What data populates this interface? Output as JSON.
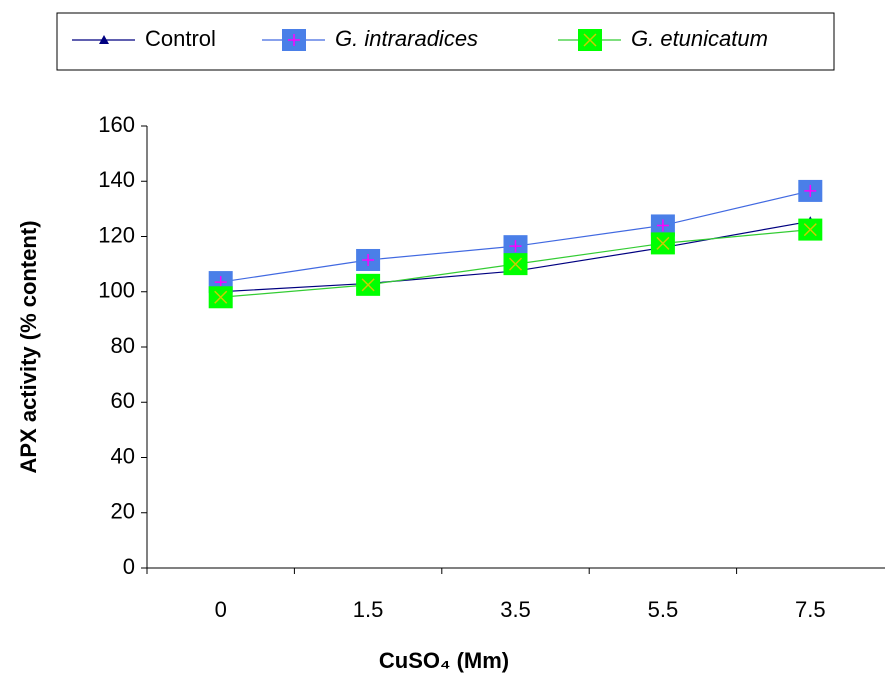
{
  "chart_data": {
    "type": "line",
    "categories": [
      "0",
      "1.5",
      "3.5",
      "5.5",
      "7.5"
    ],
    "x_label": "CuSO₄ (Mm)",
    "y_label": "APX activity (% content)",
    "ylim": [
      0,
      160
    ],
    "yticks": [
      0,
      20,
      40,
      60,
      80,
      100,
      120,
      140,
      160
    ],
    "legend": "top",
    "series": [
      {
        "name": "Control",
        "color": "#000080",
        "marker": "triangle",
        "values": [
          100,
          103,
          107.5,
          116,
          125.5
        ]
      },
      {
        "name": "G. intraradices",
        "color": "#4169e1",
        "marker": "square-plus",
        "italic": true,
        "values": [
          103.5,
          111.5,
          116.5,
          124,
          136.5
        ]
      },
      {
        "name": "G. etunicatum",
        "color": "#33cc33",
        "marker": "square-x",
        "italic": true,
        "values": [
          98,
          102.5,
          110,
          117.5,
          122.5
        ]
      }
    ]
  }
}
